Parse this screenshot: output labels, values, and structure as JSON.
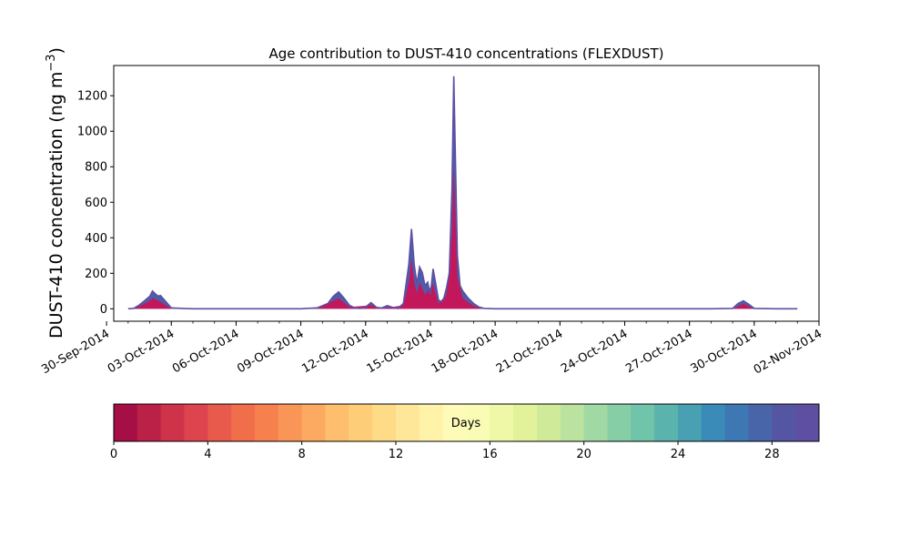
{
  "chart_data": {
    "type": "area",
    "title": "Age contribution to DUST-410 concentrations (FLEXDUST)",
    "ylabel": "DUST-410 concentration (ng m⁻³)",
    "ylabel_parts": {
      "main": "DUST-410 concentration (ng m",
      "sup": "−3",
      "close": ")"
    },
    "xlabel": "",
    "x_axis": {
      "type": "date",
      "range": [
        "2014-09-30T08:00",
        "2014-11-02T00:00"
      ],
      "tick_labels": [
        "30-Sep-2014",
        "03-Oct-2014",
        "06-Oct-2014",
        "09-Oct-2014",
        "12-Oct-2014",
        "15-Oct-2014",
        "18-Oct-2014",
        "21-Oct-2014",
        "24-Oct-2014",
        "27-Oct-2014",
        "30-Oct-2014",
        "02-Nov-2014"
      ],
      "tick_dates": [
        "2014-09-30",
        "2014-10-03",
        "2014-10-06",
        "2014-10-09",
        "2014-10-12",
        "2014-10-15",
        "2014-10-18",
        "2014-10-21",
        "2014-10-24",
        "2014-10-27",
        "2014-10-30",
        "2014-11-02"
      ],
      "minor_tick_interval_days": 1
    },
    "y_axis": {
      "range": [
        -70,
        1370
      ],
      "ticks": [
        0,
        200,
        400,
        600,
        800,
        1000,
        1200
      ]
    },
    "grid": false,
    "series_note": "stacked area by particle age (days), colored by age bin",
    "total_series": {
      "name": "",
      "color": "#5e4fa2",
      "points": [
        [
          "2014-10-01T00:00",
          0
        ],
        [
          "2014-10-01T06:00",
          2
        ],
        [
          "2014-10-01T12:00",
          20
        ],
        [
          "2014-10-01T18:00",
          45
        ],
        [
          "2014-10-02T00:00",
          70
        ],
        [
          "2014-10-02T03:00",
          100
        ],
        [
          "2014-10-02T06:00",
          85
        ],
        [
          "2014-10-02T09:00",
          72
        ],
        [
          "2014-10-02T12:00",
          75
        ],
        [
          "2014-10-02T18:00",
          40
        ],
        [
          "2014-10-03T00:00",
          5
        ],
        [
          "2014-10-03T12:00",
          2
        ],
        [
          "2014-10-04T00:00",
          0
        ],
        [
          "2014-10-09T00:00",
          0
        ],
        [
          "2014-10-09T18:00",
          5
        ],
        [
          "2014-10-10T06:00",
          30
        ],
        [
          "2014-10-10T12:00",
          70
        ],
        [
          "2014-10-10T18:00",
          95
        ],
        [
          "2014-10-11T00:00",
          60
        ],
        [
          "2014-10-11T06:00",
          20
        ],
        [
          "2014-10-11T12:00",
          5
        ],
        [
          "2014-10-11T18:00",
          2
        ],
        [
          "2014-10-12T00:00",
          10
        ],
        [
          "2014-10-12T06:00",
          35
        ],
        [
          "2014-10-12T12:00",
          8
        ],
        [
          "2014-10-12T18:00",
          5
        ],
        [
          "2014-10-13T00:00",
          18
        ],
        [
          "2014-10-13T06:00",
          8
        ],
        [
          "2014-10-13T12:00",
          2
        ],
        [
          "2014-10-13T18:00",
          30
        ],
        [
          "2014-10-14T00:00",
          250
        ],
        [
          "2014-10-14T03:00",
          450
        ],
        [
          "2014-10-14T06:00",
          250
        ],
        [
          "2014-10-14T09:00",
          140
        ],
        [
          "2014-10-14T12:00",
          235
        ],
        [
          "2014-10-14T15:00",
          205
        ],
        [
          "2014-10-14T18:00",
          130
        ],
        [
          "2014-10-14T21:00",
          150
        ],
        [
          "2014-10-15T00:00",
          80
        ],
        [
          "2014-10-15T03:00",
          225
        ],
        [
          "2014-10-15T06:00",
          140
        ],
        [
          "2014-10-15T09:00",
          50
        ],
        [
          "2014-10-15T12:00",
          40
        ],
        [
          "2014-10-15T15:00",
          60
        ],
        [
          "2014-10-15T18:00",
          120
        ],
        [
          "2014-10-15T21:00",
          200
        ],
        [
          "2014-10-16T00:00",
          680
        ],
        [
          "2014-10-16T02:00",
          1310
        ],
        [
          "2014-10-16T04:00",
          800
        ],
        [
          "2014-10-16T06:00",
          300
        ],
        [
          "2014-10-16T09:00",
          130
        ],
        [
          "2014-10-16T12:00",
          100
        ],
        [
          "2014-10-16T18:00",
          60
        ],
        [
          "2014-10-17T00:00",
          30
        ],
        [
          "2014-10-17T06:00",
          10
        ],
        [
          "2014-10-17T12:00",
          2
        ],
        [
          "2014-10-18T00:00",
          0
        ],
        [
          "2014-10-28T00:00",
          0
        ],
        [
          "2014-10-29T00:00",
          2
        ],
        [
          "2014-10-29T06:00",
          30
        ],
        [
          "2014-10-29T12:00",
          45
        ],
        [
          "2014-10-29T18:00",
          25
        ],
        [
          "2014-10-30T00:00",
          2
        ],
        [
          "2014-10-31T00:00",
          0
        ],
        [
          "2014-11-01T00:00",
          0
        ]
      ]
    },
    "young_fraction_series": {
      "name": "",
      "color": "#c2185b",
      "points": [
        [
          "2014-10-01T00:00",
          0
        ],
        [
          "2014-10-01T12:00",
          12
        ],
        [
          "2014-10-02T00:00",
          45
        ],
        [
          "2014-10-02T03:00",
          60
        ],
        [
          "2014-10-02T09:00",
          48
        ],
        [
          "2014-10-02T18:00",
          20
        ],
        [
          "2014-10-03T00:00",
          0
        ],
        [
          "2014-10-09T18:00",
          2
        ],
        [
          "2014-10-10T12:00",
          45
        ],
        [
          "2014-10-10T18:00",
          60
        ],
        [
          "2014-10-11T06:00",
          10
        ],
        [
          "2014-10-12T06:00",
          20
        ],
        [
          "2014-10-12T18:00",
          2
        ],
        [
          "2014-10-13T18:00",
          20
        ],
        [
          "2014-10-14T00:00",
          150
        ],
        [
          "2014-10-14T03:00",
          280
        ],
        [
          "2014-10-14T06:00",
          150
        ],
        [
          "2014-10-14T09:00",
          90
        ],
        [
          "2014-10-14T12:00",
          150
        ],
        [
          "2014-10-14T18:00",
          80
        ],
        [
          "2014-10-15T03:00",
          140
        ],
        [
          "2014-10-15T09:00",
          30
        ],
        [
          "2014-10-15T18:00",
          80
        ],
        [
          "2014-10-16T00:00",
          420
        ],
        [
          "2014-10-16T02:00",
          810
        ],
        [
          "2014-10-16T04:00",
          500
        ],
        [
          "2014-10-16T06:00",
          180
        ],
        [
          "2014-10-16T12:00",
          60
        ],
        [
          "2014-10-17T00:00",
          15
        ],
        [
          "2014-10-17T12:00",
          0
        ],
        [
          "2014-10-29T00:00",
          0
        ],
        [
          "2014-10-29T12:00",
          28
        ],
        [
          "2014-10-30T00:00",
          0
        ],
        [
          "2014-11-01T00:00",
          0
        ]
      ]
    },
    "colorbar": {
      "label": "Days",
      "range": [
        0,
        30
      ],
      "tick_labels": [
        "0",
        "4",
        "8",
        "12",
        "16",
        "20",
        "24",
        "28"
      ],
      "tick_values": [
        0,
        4,
        8,
        12,
        16,
        20,
        24,
        28
      ],
      "bins": 30,
      "colors": [
        "#a50f46",
        "#bb2147",
        "#cf3349",
        "#dd444d",
        "#e85a4c",
        "#f06e4a",
        "#f6814e",
        "#f99557",
        "#fcaa61",
        "#fdbe6d",
        "#fecd78",
        "#fedb87",
        "#fee798",
        "#fef3a8",
        "#fefbb8",
        "#f8fcb5",
        "#eef8a6",
        "#e1f29a",
        "#cfeb9a",
        "#bbe39f",
        "#a1d9a4",
        "#86cea6",
        "#6fc4a9",
        "#5bb3ad",
        "#48a0b2",
        "#3a8bb8",
        "#3d77b4",
        "#4865aa",
        "#5556a3",
        "#5e4fa2"
      ]
    }
  }
}
